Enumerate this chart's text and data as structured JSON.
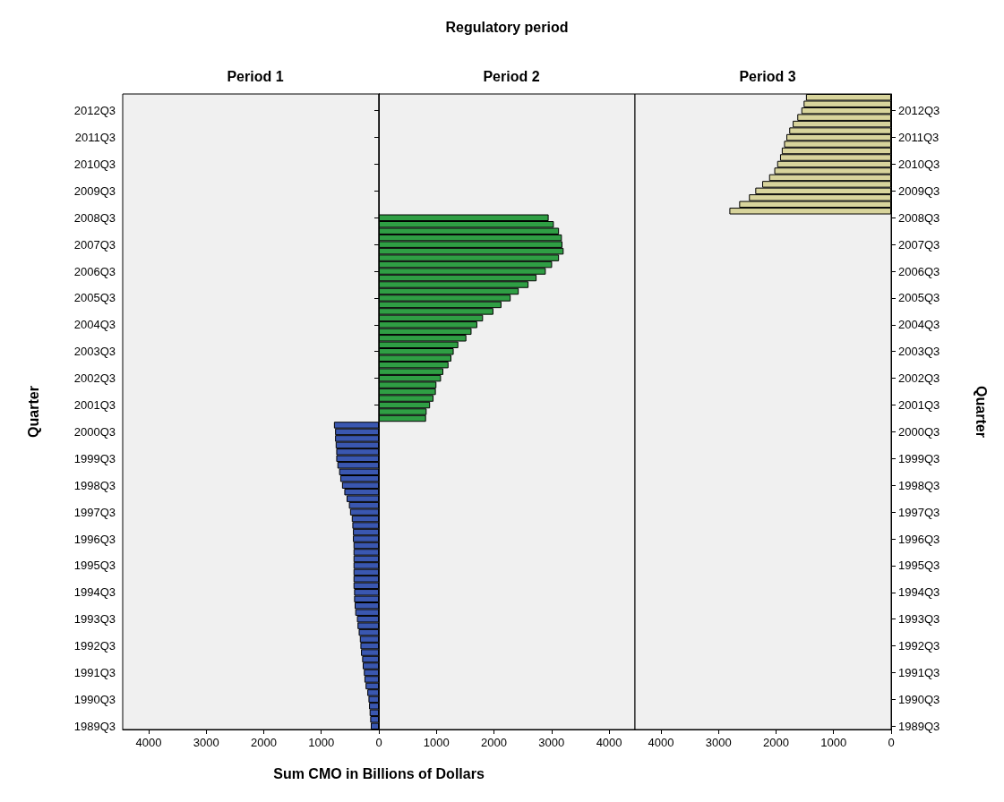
{
  "chart_data": [
    {
      "type": "bar",
      "orientation": "horizontal",
      "title": "Period 1",
      "ylabel": "Quarter",
      "color": "#3a57b0",
      "categories": [
        null,
        null,
        "2012Q3",
        null,
        null,
        null,
        "2011Q3",
        null,
        null,
        null,
        "2010Q3",
        null,
        null,
        null,
        "2009Q3",
        null,
        null,
        null,
        "2008Q3",
        null,
        null,
        null,
        "2007Q3",
        null,
        null,
        null,
        "2006Q3",
        null,
        null,
        null,
        "2005Q3",
        null,
        null,
        null,
        "2004Q3",
        null,
        null,
        null,
        "2003Q3",
        null,
        null,
        null,
        "2002Q3",
        null,
        null,
        null,
        "2001Q3",
        null,
        null,
        null,
        "2000Q3",
        null,
        null,
        null,
        "1999Q3",
        null,
        null,
        null,
        "1998Q3",
        null,
        null,
        null,
        "1997Q3",
        null,
        null,
        null,
        "1996Q3",
        null,
        null,
        null,
        "1995Q3",
        null,
        null,
        null,
        "1994Q3",
        null,
        null,
        null,
        "1993Q3",
        null,
        null,
        null,
        "1992Q3",
        null,
        null,
        null,
        "1991Q3",
        null,
        null,
        null,
        "1990Q3",
        null,
        null,
        null,
        "1989Q3"
      ],
      "values": [
        null,
        null,
        null,
        null,
        null,
        null,
        null,
        null,
        null,
        null,
        null,
        null,
        null,
        null,
        null,
        null,
        null,
        null,
        null,
        null,
        null,
        null,
        null,
        null,
        null,
        null,
        null,
        null,
        null,
        null,
        null,
        null,
        null,
        null,
        null,
        null,
        null,
        null,
        null,
        null,
        null,
        null,
        null,
        null,
        null,
        null,
        null,
        null,
        null,
        780,
        760,
        760,
        750,
        740,
        740,
        720,
        690,
        670,
        640,
        600,
        560,
        520,
        500,
        470,
        460,
        450,
        450,
        440,
        440,
        440,
        440,
        440,
        440,
        440,
        430,
        430,
        420,
        410,
        380,
        370,
        350,
        330,
        320,
        310,
        290,
        280,
        260,
        250,
        230,
        200,
        180,
        170,
        160,
        150,
        140
      ],
      "xlim": [
        4450,
        0
      ],
      "xticks": [
        4000,
        3000,
        2000,
        1000,
        {
          "value": 0,
          "label": null
        }
      ]
    },
    {
      "type": "bar",
      "orientation": "horizontal",
      "title": "Period 2",
      "xlabel": "Sum CMO in Billions of Dollars",
      "annotations": [
        "Regulatory period"
      ],
      "color": "#2f9e44",
      "tick_labels": "x",
      "categories": [
        null,
        null,
        null,
        null,
        null,
        null,
        null,
        null,
        null,
        null,
        null,
        null,
        null,
        null,
        null,
        null,
        null,
        null,
        null,
        null,
        null,
        null,
        null,
        null,
        null,
        null,
        null,
        null,
        null,
        null,
        null,
        null,
        null,
        null,
        null,
        null,
        null,
        null,
        null,
        null,
        null,
        null,
        null,
        null,
        null,
        null,
        null,
        null,
        null,
        null,
        null,
        null,
        null,
        null,
        null,
        null,
        null,
        null,
        null,
        null,
        null,
        null,
        null,
        null,
        null,
        null,
        null,
        null,
        null,
        null,
        null,
        null,
        null,
        null,
        null,
        null,
        null,
        null,
        null,
        null,
        null,
        null,
        null,
        null,
        null,
        null,
        null,
        null,
        null,
        null,
        null,
        null,
        null,
        null,
        null
      ],
      "values": [
        null,
        null,
        null,
        null,
        null,
        null,
        null,
        null,
        null,
        null,
        null,
        null,
        null,
        null,
        null,
        null,
        null,
        null,
        2950,
        3040,
        3130,
        3180,
        3190,
        3210,
        3130,
        3010,
        2900,
        2740,
        2600,
        2430,
        2290,
        2130,
        1990,
        1810,
        1710,
        1610,
        1520,
        1380,
        1300,
        1260,
        1210,
        1120,
        1080,
        1000,
        990,
        950,
        890,
        830,
        820,
        null,
        null,
        null,
        null,
        null,
        null,
        null,
        null,
        null,
        null,
        null,
        null,
        null,
        null,
        null,
        null,
        null,
        null,
        null,
        null,
        null,
        null,
        null,
        null,
        null,
        null,
        null,
        null,
        null,
        null,
        null,
        null,
        null,
        null,
        null,
        null,
        null,
        null,
        null,
        null,
        null,
        null,
        null,
        null,
        null,
        null
      ],
      "xlim": [
        0,
        4450
      ],
      "xticks": [
        0,
        1000,
        2000,
        3000,
        4000
      ]
    },
    {
      "type": "bar",
      "orientation": "horizontal",
      "title": "Period 3",
      "ylabel": "Quarter",
      "color": "#d8d49c",
      "categories": [
        null,
        null,
        "2012Q3",
        null,
        null,
        null,
        "2011Q3",
        null,
        null,
        null,
        "2010Q3",
        null,
        null,
        null,
        "2009Q3",
        null,
        null,
        null,
        "2008Q3",
        null,
        null,
        null,
        "2007Q3",
        null,
        null,
        null,
        "2006Q3",
        null,
        null,
        null,
        "2005Q3",
        null,
        null,
        null,
        "2004Q3",
        null,
        null,
        null,
        "2003Q3",
        null,
        null,
        null,
        "2002Q3",
        null,
        null,
        null,
        "2001Q3",
        null,
        null,
        null,
        "2000Q3",
        null,
        null,
        null,
        "1999Q3",
        null,
        null,
        null,
        "1998Q3",
        null,
        null,
        null,
        "1997Q3",
        null,
        null,
        null,
        "1996Q3",
        null,
        null,
        null,
        "1995Q3",
        null,
        null,
        null,
        "1994Q3",
        null,
        null,
        null,
        "1993Q3",
        null,
        null,
        null,
        "1992Q3",
        null,
        null,
        null,
        "1991Q3",
        null,
        null,
        null,
        "1990Q3",
        null,
        null,
        null,
        "1989Q3"
      ],
      "values": [
        1480,
        1520,
        1560,
        1630,
        1710,
        1770,
        1820,
        1860,
        1900,
        1930,
        1980,
        2030,
        2120,
        2240,
        2360,
        2470,
        2640,
        2810,
        null,
        null,
        null,
        null,
        null,
        null,
        null,
        null,
        null,
        null,
        null,
        null,
        null,
        null,
        null,
        null,
        null,
        null,
        null,
        null,
        null,
        null,
        null,
        null,
        null,
        null,
        null,
        null,
        null,
        null,
        null,
        null,
        null,
        null,
        null,
        null,
        null,
        null,
        null,
        null,
        null,
        null,
        null,
        null,
        null,
        null,
        null,
        null,
        null,
        null,
        null,
        null,
        null,
        null,
        null,
        null,
        null,
        null,
        null,
        null,
        null,
        null,
        null,
        null,
        null,
        null,
        null,
        null,
        null,
        null,
        null,
        null,
        null,
        null,
        null,
        null,
        null
      ],
      "xlim": [
        4450,
        0
      ],
      "xticks": [
        4000,
        3000,
        2000,
        1000,
        0
      ]
    }
  ]
}
